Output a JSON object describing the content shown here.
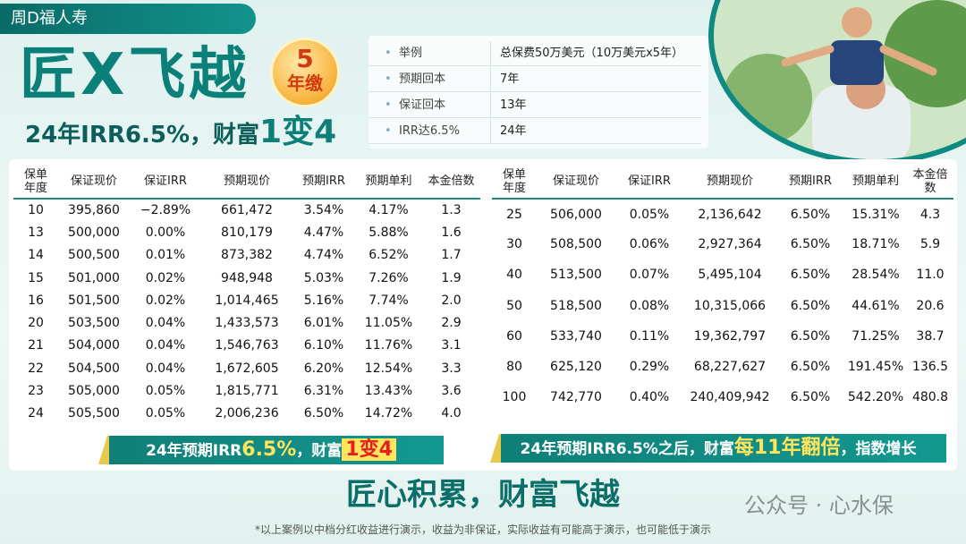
{
  "header": {
    "brand": "周D福人寿",
    "title": "匠X飞越",
    "badge_number": "5",
    "badge_label": "年缴",
    "subtitle_plain": "24年IRR6.5%，财富",
    "subtitle_emph": "1变4"
  },
  "info": {
    "rows": [
      [
        "举例",
        "总保费50万美元（10万美元x5年）"
      ],
      [
        "预期回本",
        "7年"
      ],
      [
        "保证回本",
        "13年"
      ],
      [
        "IRR达6.5%",
        "24年"
      ]
    ]
  },
  "left_table": {
    "columns": [
      "保单年度",
      "保证现价",
      "保证IRR",
      "预期现价",
      "预期IRR",
      "预期单利",
      "本金倍数"
    ],
    "rows": [
      [
        "10",
        "395,860",
        "−2.89%",
        "661,472",
        "3.54%",
        "4.17%",
        "1.3"
      ],
      [
        "13",
        "500,000",
        "0.00%",
        "810,179",
        "4.47%",
        "5.88%",
        "1.6"
      ],
      [
        "14",
        "500,500",
        "0.01%",
        "873,382",
        "4.74%",
        "6.52%",
        "1.7"
      ],
      [
        "15",
        "501,000",
        "0.02%",
        "948,948",
        "5.03%",
        "7.26%",
        "1.9"
      ],
      [
        "16",
        "501,500",
        "0.02%",
        "1,014,465",
        "5.16%",
        "7.74%",
        "2.0"
      ],
      [
        "20",
        "503,500",
        "0.04%",
        "1,433,573",
        "6.01%",
        "11.05%",
        "2.9"
      ],
      [
        "21",
        "504,000",
        "0.04%",
        "1,546,763",
        "6.10%",
        "11.76%",
        "3.1"
      ],
      [
        "22",
        "504,500",
        "0.04%",
        "1,672,605",
        "6.20%",
        "12.54%",
        "3.3"
      ],
      [
        "23",
        "505,000",
        "0.05%",
        "1,815,771",
        "6.31%",
        "13.43%",
        "3.6"
      ],
      [
        "24",
        "505,500",
        "0.05%",
        "2,006,236",
        "6.50%",
        "14.72%",
        "4.0"
      ]
    ]
  },
  "right_table": {
    "columns": [
      "保单年度",
      "保证现价",
      "保证IRR",
      "预期现价",
      "预期IRR",
      "预期单利",
      "本金倍数"
    ],
    "rows": [
      [
        "25",
        "506,000",
        "0.05%",
        "2,136,642",
        "6.50%",
        "15.31%",
        "4.3"
      ],
      [
        "30",
        "508,500",
        "0.06%",
        "2,927,364",
        "6.50%",
        "18.71%",
        "5.9"
      ],
      [
        "40",
        "513,500",
        "0.07%",
        "5,495,104",
        "6.50%",
        "28.54%",
        "11.0"
      ],
      [
        "50",
        "518,500",
        "0.08%",
        "10,315,066",
        "6.50%",
        "44.61%",
        "20.6"
      ],
      [
        "60",
        "533,740",
        "0.11%",
        "19,362,797",
        "6.50%",
        "71.25%",
        "38.7"
      ],
      [
        "80",
        "625,120",
        "0.29%",
        "68,227,627",
        "6.50%",
        "191.45%",
        "136.5"
      ],
      [
        "100",
        "742,770",
        "0.40%",
        "240,409,942",
        "6.50%",
        "542.20%",
        "480.8"
      ]
    ]
  },
  "left_banner": {
    "part1": "24年预期IRR",
    "part2": "6.5%",
    "part3": "，财富",
    "part4": "1变4"
  },
  "right_banner": {
    "part1": "24年预期IRR6.5%之后，财富",
    "part2": "每11年翻倍",
    "part3": "，指数增长"
  },
  "slogan": "匠心积累，财富飞越",
  "watermark": "公众号 · 心水保",
  "footnote": "*以上案例以中档分红收益进行演示，收益为非保证，实际收益有可能高于演示，也可能低于演示"
}
